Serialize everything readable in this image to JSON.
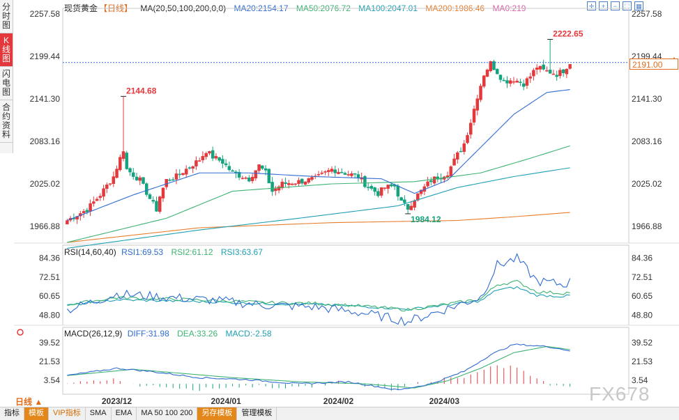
{
  "side_tabs": [
    "分时图",
    "K线图",
    "闪电图",
    "合约资料"
  ],
  "active_tab": 1,
  "header": {
    "title": "现货黄金",
    "period": "【日线】",
    "ma_label": "MA(20,50,100,200,0,0)",
    "ma20": "MA20:2154.17",
    "ma50": "MA50:2076.72",
    "ma100": "MA100:2047.01",
    "ma200": "MA200:1986.46",
    "ma0": "MA0:219"
  },
  "price_panel": {
    "yticks": [
      "2257.58",
      "2199.44",
      "2141.30",
      "2083.16",
      "2025.02",
      "1966.88"
    ],
    "ytick_values": [
      2257.58,
      2199.44,
      2141.3,
      2083.16,
      2025.02,
      1966.88
    ],
    "current_price": "2191.00",
    "current_value": 2191.0,
    "annotations": [
      {
        "text": "2144.68",
        "value": 2144.68,
        "index": 17
      },
      {
        "text": "2222.65",
        "value": 2222.65,
        "index": 146
      },
      {
        "text": "1984.12",
        "value": 1984.12,
        "index": 103
      }
    ]
  },
  "rsi": {
    "label": "RSI(14,60,40)",
    "rsi1": "RSI1:69.53",
    "rsi2": "RSI2:61.12",
    "rsi3": "RSI3:63.67",
    "yticks": [
      "84.36",
      "72.51",
      "60.65",
      "48.80"
    ],
    "ytick_values": [
      84.36,
      72.51,
      60.65,
      48.8
    ]
  },
  "macd": {
    "label": "MACD(26,12,9)",
    "diff": "DIFF:31.98",
    "dea": "DEA:33.26",
    "macd": "MACD:-2.58",
    "yticks": [
      "39.52",
      "21.53",
      "3.54"
    ],
    "ytick_values": [
      39.52,
      21.53,
      3.54
    ]
  },
  "xaxis": {
    "labels": [
      {
        "text": "2023/12",
        "index": 15
      },
      {
        "text": "2024/01",
        "index": 48
      },
      {
        "text": "2024/02",
        "index": 82
      },
      {
        "text": "2024/03",
        "index": 114
      }
    ]
  },
  "period_label": "日线 ▲",
  "bottom_bar": [
    "指标",
    "模板",
    "VIP指标",
    "SMA",
    "EMA",
    "MA 50 100 200",
    "另存模板",
    "管理模板"
  ],
  "watermark": "FX678",
  "colors": {
    "up": "#e4393c",
    "down": "#14a37f",
    "ma20": "#2f6bd1",
    "ma50": "#3cb371",
    "ma100": "#1e9fb4",
    "ma200": "#e87e2b"
  },
  "chart_data": {
    "type": "candlestick",
    "series_anchors_close": [
      [
        0,
        1975
      ],
      [
        6,
        1990
      ],
      [
        10,
        2010
      ],
      [
        14,
        2035
      ],
      [
        16,
        2060
      ],
      [
        17,
        2072
      ],
      [
        18,
        2045
      ],
      [
        22,
        2030
      ],
      [
        25,
        2005
      ],
      [
        27,
        1990
      ],
      [
        28,
        2008
      ],
      [
        30,
        2030
      ],
      [
        33,
        2035
      ],
      [
        36,
        2045
      ],
      [
        40,
        2058
      ],
      [
        42,
        2070
      ],
      [
        44,
        2062
      ],
      [
        47,
        2055
      ],
      [
        50,
        2040
      ],
      [
        55,
        2032
      ],
      [
        58,
        2050
      ],
      [
        60,
        2040
      ],
      [
        62,
        2015
      ],
      [
        65,
        2025
      ],
      [
        70,
        2028
      ],
      [
        75,
        2032
      ],
      [
        80,
        2045
      ],
      [
        84,
        2040
      ],
      [
        88,
        2035
      ],
      [
        90,
        2025
      ],
      [
        92,
        2018
      ],
      [
        94,
        2012
      ],
      [
        96,
        2020
      ],
      [
        99,
        2022
      ],
      [
        101,
        2000
      ],
      [
        103,
        1992
      ],
      [
        105,
        2005
      ],
      [
        110,
        2030
      ],
      [
        115,
        2040
      ],
      [
        118,
        2065
      ],
      [
        120,
        2080
      ],
      [
        122,
        2110
      ],
      [
        124,
        2145
      ],
      [
        126,
        2175
      ],
      [
        128,
        2190
      ],
      [
        130,
        2178
      ],
      [
        132,
        2165
      ],
      [
        135,
        2168
      ],
      [
        138,
        2162
      ],
      [
        140,
        2172
      ],
      [
        142,
        2185
      ],
      [
        144,
        2180
      ],
      [
        146,
        2178
      ],
      [
        148,
        2175
      ],
      [
        150,
        2180
      ],
      [
        152,
        2191
      ]
    ],
    "ma20_anchors": [
      [
        0,
        1975
      ],
      [
        20,
        2010
      ],
      [
        40,
        2040
      ],
      [
        55,
        2040
      ],
      [
        75,
        2035
      ],
      [
        95,
        2032
      ],
      [
        105,
        2012
      ],
      [
        115,
        2030
      ],
      [
        125,
        2075
      ],
      [
        135,
        2120
      ],
      [
        145,
        2150
      ],
      [
        152,
        2154
      ]
    ],
    "ma50_anchors": [
      [
        0,
        1945
      ],
      [
        30,
        1978
      ],
      [
        50,
        2015
      ],
      [
        80,
        2025
      ],
      [
        105,
        2028
      ],
      [
        125,
        2040
      ],
      [
        140,
        2060
      ],
      [
        152,
        2077
      ]
    ],
    "ma100_anchors": [
      [
        0,
        1937
      ],
      [
        40,
        1962
      ],
      [
        70,
        1978
      ],
      [
        100,
        1995
      ],
      [
        118,
        2020
      ],
      [
        135,
        2035
      ],
      [
        152,
        2047
      ]
    ],
    "ma200_anchors": [
      [
        0,
        1945
      ],
      [
        40,
        1965
      ],
      [
        80,
        1972
      ],
      [
        118,
        1975
      ],
      [
        135,
        1980
      ],
      [
        152,
        1986
      ]
    ]
  }
}
